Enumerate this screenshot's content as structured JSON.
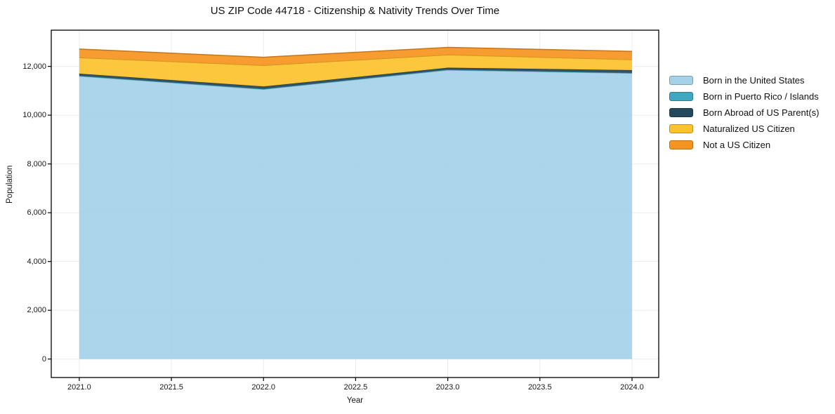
{
  "chart_data": {
    "type": "area",
    "stacked": true,
    "title": "US ZIP Code 44718 - Citizenship & Nativity Trends Over Time",
    "xlabel": "Year",
    "ylabel": "Population",
    "x": [
      2021,
      2022,
      2023,
      2024
    ],
    "series": [
      {
        "name": "Born in the United States",
        "color": "#a5d2e9",
        "values": [
          11600,
          11060,
          11850,
          11720
        ]
      },
      {
        "name": "Born in Puerto Rico / Islands",
        "color": "#3fa7c0",
        "values": [
          20,
          20,
          20,
          20
        ]
      },
      {
        "name": "Born Abroad of US Parent(s)",
        "color": "#24485c",
        "values": [
          80,
          95,
          75,
          105
        ]
      },
      {
        "name": "Naturalized US Citizen",
        "color": "#fcc32e",
        "values": [
          660,
          865,
          530,
          430
        ]
      },
      {
        "name": "Not a US Citizen",
        "color": "#f69420",
        "values": [
          350,
          335,
          305,
          340
        ]
      }
    ],
    "stack_totals": [
      12710,
      12375,
      12780,
      12615
    ],
    "xticks": {
      "values": [
        2021.0,
        2021.5,
        2022.0,
        2022.5,
        2023.0,
        2023.5,
        2024.0
      ],
      "labels": [
        "2021.0",
        "2021.5",
        "2022.0",
        "2022.5",
        "2023.0",
        "2023.5",
        "2024.0"
      ]
    },
    "yticks": {
      "values": [
        0,
        2000,
        4000,
        6000,
        8000,
        10000,
        12000
      ],
      "labels": [
        "0",
        "2,000",
        "4,000",
        "6,000",
        "8,000",
        "10,000",
        "12,000"
      ]
    },
    "xlim": [
      2020.848,
      2024.145
    ],
    "ylim": [
      -757,
      13485
    ],
    "grid": true,
    "grid_color": "#ebebeb",
    "spine_color": "#000000",
    "legend_position": "right"
  }
}
